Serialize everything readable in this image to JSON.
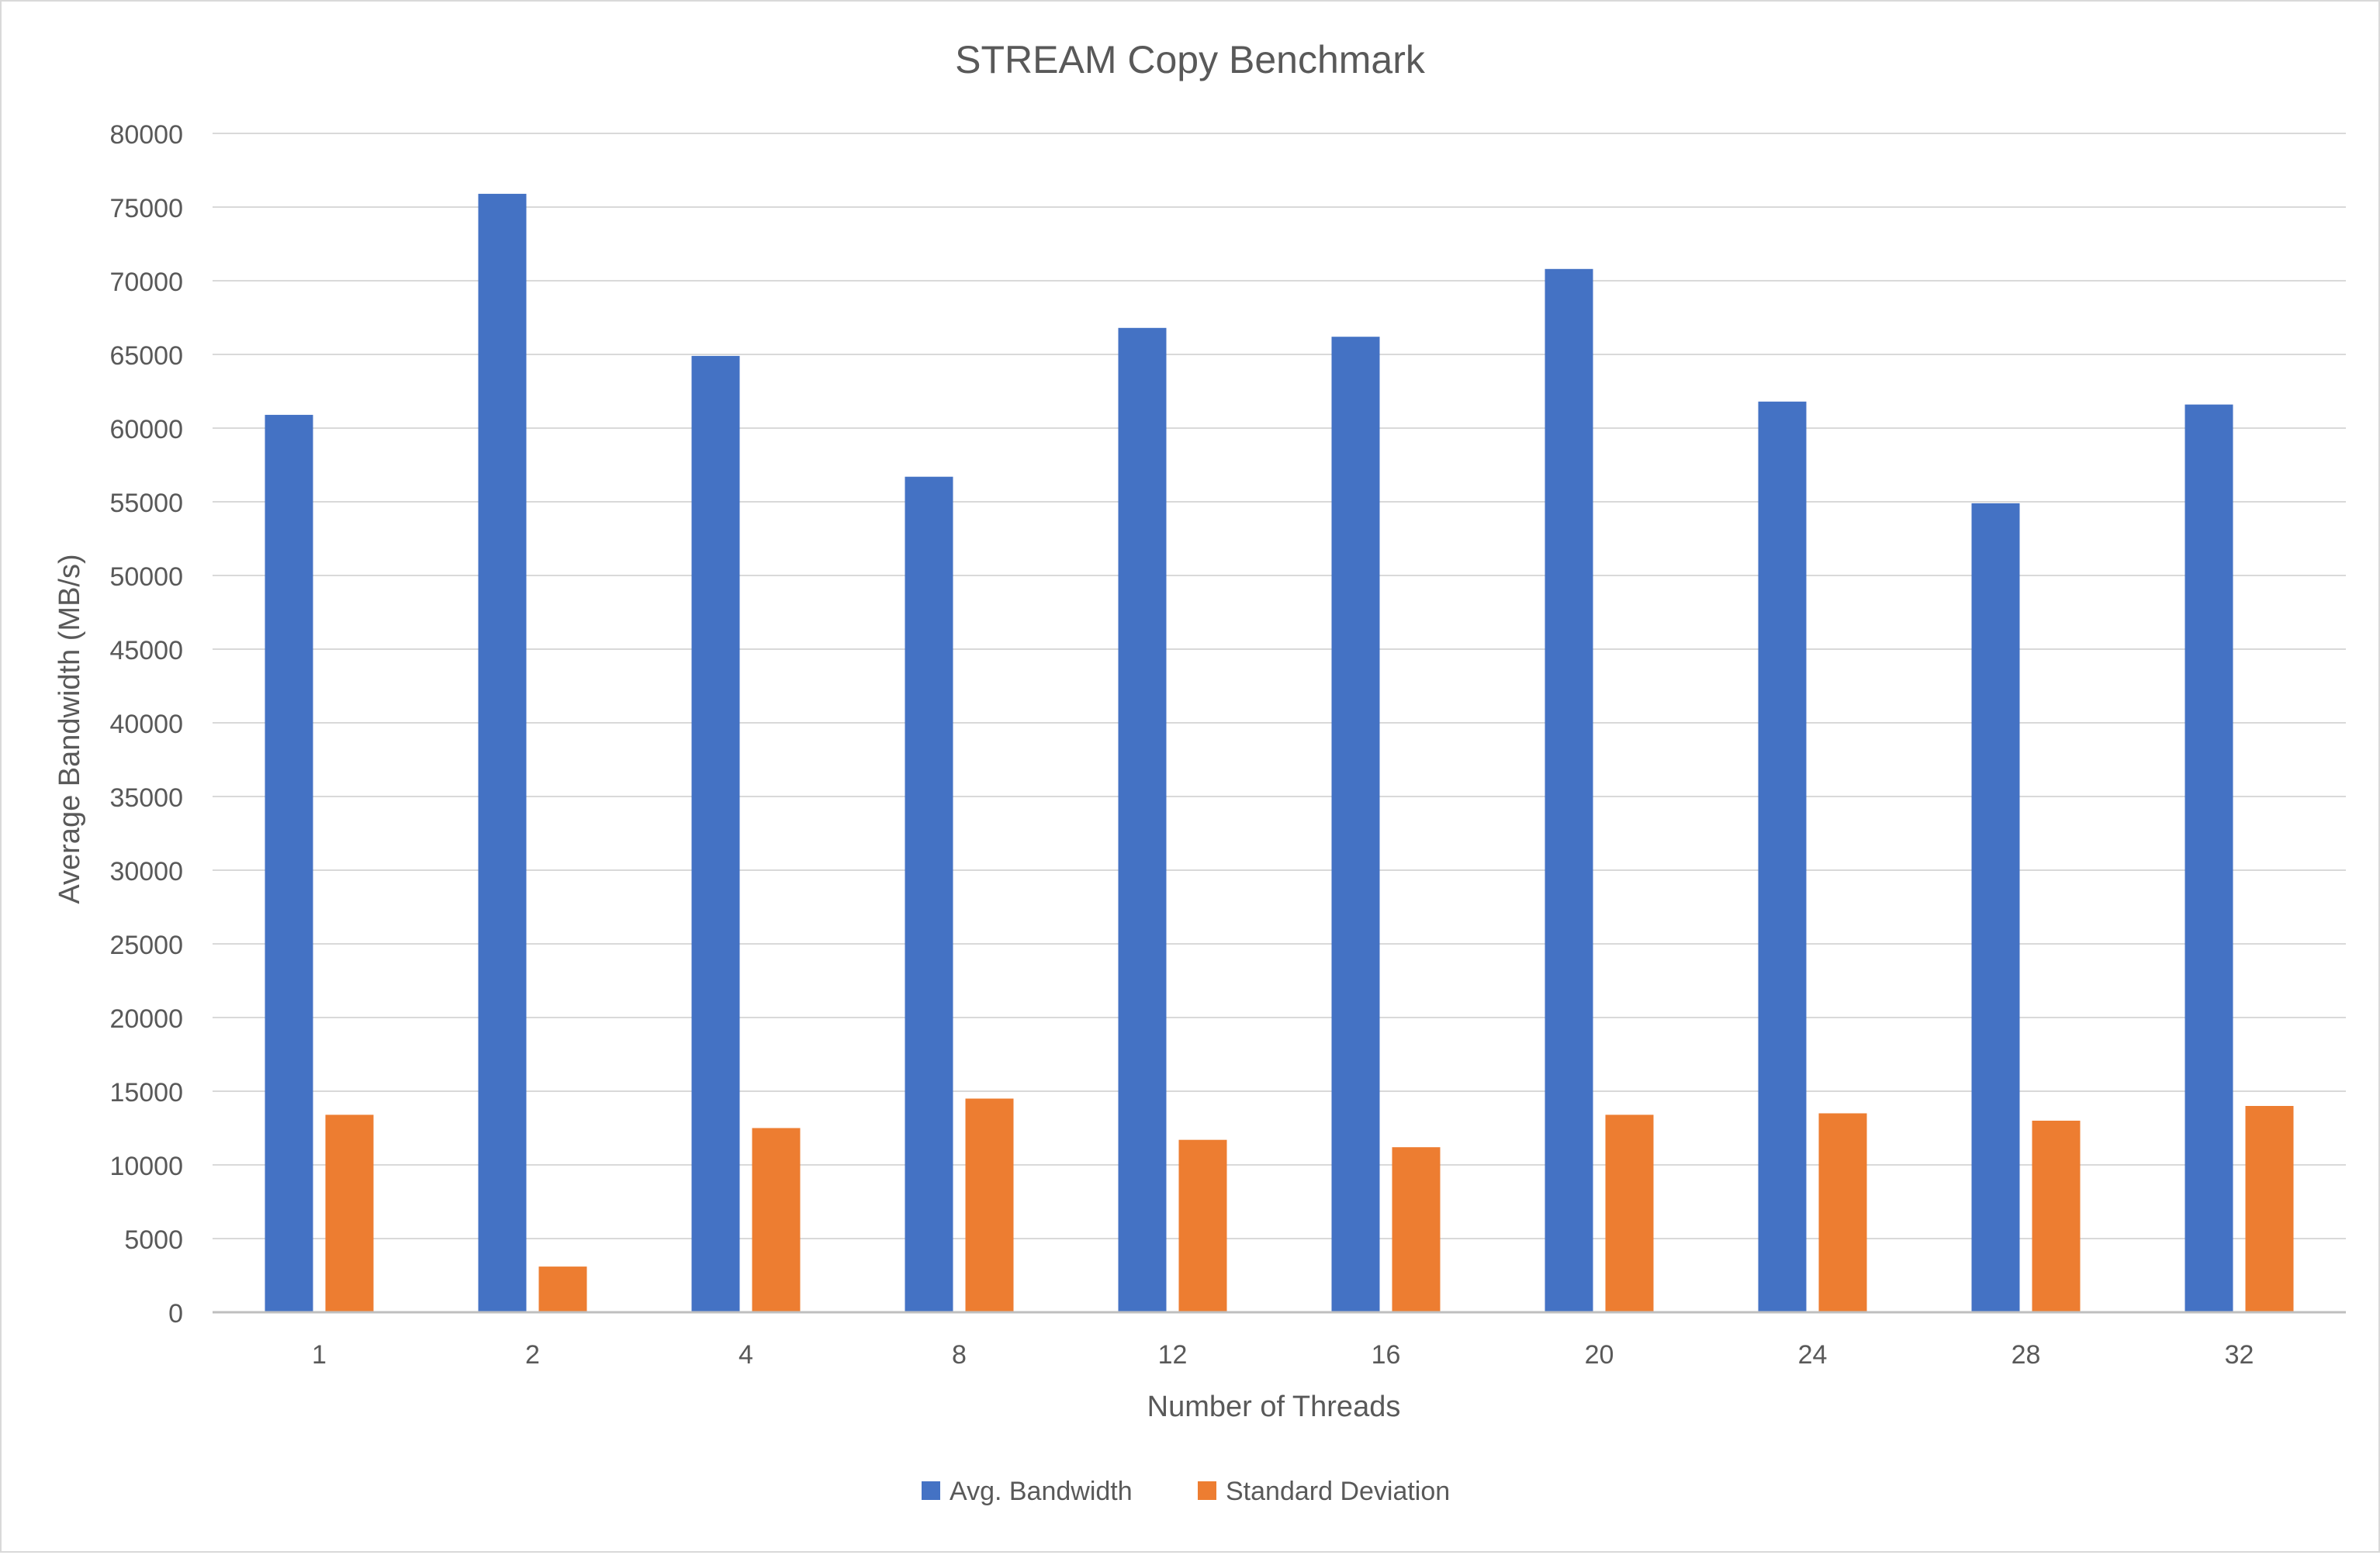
{
  "chart_data": {
    "type": "bar",
    "title": "STREAM Copy Benchmark",
    "xlabel": "Number of Threads",
    "ylabel": "Average Bandwidth (MB/s)",
    "categories": [
      "1",
      "2",
      "4",
      "8",
      "12",
      "16",
      "20",
      "24",
      "28",
      "32"
    ],
    "series": [
      {
        "name": "Avg. Bandwidth",
        "color": "#4472C4",
        "values": [
          60900,
          75900,
          64900,
          56700,
          66800,
          66200,
          70800,
          61800,
          54900,
          61600
        ]
      },
      {
        "name": "Standard Deviation",
        "color": "#ED7D31",
        "values": [
          13400,
          3100,
          12500,
          14500,
          11700,
          11200,
          13400,
          13500,
          13000,
          14000
        ]
      }
    ],
    "ylim": [
      0,
      80000
    ],
    "yticks": [
      0,
      5000,
      10000,
      15000,
      20000,
      25000,
      30000,
      35000,
      40000,
      45000,
      50000,
      55000,
      60000,
      65000,
      70000,
      75000,
      80000
    ],
    "grid": true,
    "legend_position": "bottom",
    "colors": {
      "grid": "#d9d9d9",
      "axis_line": "#bfbfbf",
      "text": "#595959"
    }
  }
}
